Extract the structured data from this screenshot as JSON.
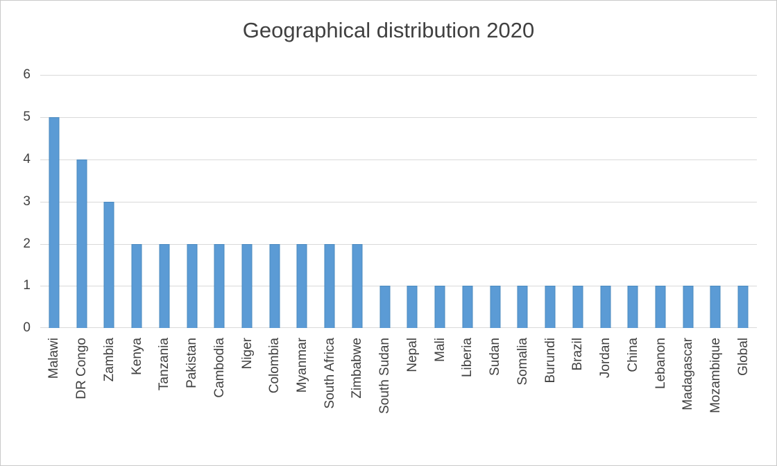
{
  "chart_data": {
    "type": "bar",
    "title": "Geographical distribution 2020",
    "categories": [
      "Malawi",
      "DR Congo",
      "Zambia",
      "Kenya",
      "Tanzania",
      "Pakistan",
      "Cambodia",
      "Niger",
      "Colombia",
      "Myanmar",
      "South Africa",
      "Zimbabwe",
      "South Sudan",
      "Nepal",
      "Mali",
      "Liberia",
      "Sudan",
      "Somalia",
      "Burundi",
      "Brazil",
      "Jordan",
      "China",
      "Lebanon",
      "Madagascar",
      "Mozambique",
      "Global"
    ],
    "values": [
      5,
      4,
      3,
      2,
      2,
      2,
      2,
      2,
      2,
      2,
      2,
      2,
      1,
      1,
      1,
      1,
      1,
      1,
      1,
      1,
      1,
      1,
      1,
      1,
      1,
      1
    ],
    "xlabel": "",
    "ylabel": "",
    "ylim": [
      0,
      6
    ],
    "yticks": [
      0,
      1,
      2,
      3,
      4,
      5,
      6
    ],
    "grid": true,
    "legend": "none",
    "colors": {
      "bar_fill": "#5b9bd5",
      "bar_border": "#4a89be",
      "gridline": "#d9d9d9",
      "text": "#404040",
      "background": "#ffffff",
      "frame_border": "#c9c9c9"
    }
  }
}
